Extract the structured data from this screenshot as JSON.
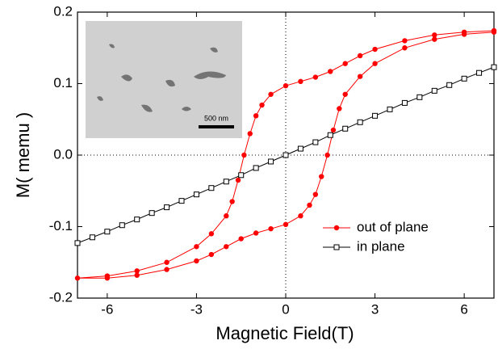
{
  "chart_data": {
    "type": "line",
    "xlabel": "Magnetic Field(T)",
    "ylabel": "M( memu )",
    "xlim": [
      -7,
      7
    ],
    "ylim": [
      -0.2,
      0.2
    ],
    "xticks": [
      -6,
      -3,
      0,
      3,
      6
    ],
    "yticks": [
      0.2,
      0.1,
      {
        "value": 0,
        "label": "0.0"
      },
      -0.1,
      -0.2
    ],
    "legend": "lower right",
    "inset": {
      "scale_label": "500 nm"
    },
    "series": [
      {
        "name": "out of plane",
        "color": "#ff0000",
        "marker": "filled-circle",
        "x": [
          7,
          6,
          5,
          4,
          3,
          2.5,
          2,
          1.5,
          1,
          0.5,
          0,
          -0.5,
          -0.8,
          -1,
          -1.2,
          -1.4,
          -1.6,
          -1.8,
          -2,
          -2.5,
          -3,
          -4,
          -5,
          -6,
          -7,
          -6,
          -5,
          -4,
          -3,
          -2.5,
          -2,
          -1.5,
          -1,
          -0.5,
          0,
          0.5,
          0.8,
          1,
          1.2,
          1.4,
          1.6,
          1.8,
          2,
          2.5,
          3,
          4,
          5,
          6,
          7
        ],
        "values": [
          0.174,
          0.172,
          0.168,
          0.16,
          0.148,
          0.139,
          0.128,
          0.117,
          0.109,
          0.103,
          0.097,
          0.085,
          0.07,
          0.055,
          0.03,
          0,
          -0.035,
          -0.065,
          -0.085,
          -0.11,
          -0.128,
          -0.15,
          -0.162,
          -0.169,
          -0.172,
          -0.172,
          -0.168,
          -0.16,
          -0.148,
          -0.139,
          -0.128,
          -0.117,
          -0.109,
          -0.103,
          -0.097,
          -0.085,
          -0.07,
          -0.055,
          -0.03,
          0,
          0.035,
          0.065,
          0.085,
          0.11,
          0.128,
          0.15,
          0.162,
          0.169,
          0.172
        ]
      },
      {
        "name": "in plane",
        "color": "#000000",
        "marker": "open-square",
        "x": [
          -7,
          -6.5,
          -6,
          -5.5,
          -5,
          -4.5,
          -4,
          -3.5,
          -3,
          -2.5,
          -2,
          -1.5,
          -1,
          -0.5,
          0,
          0.5,
          1,
          1.5,
          2,
          2.5,
          3,
          3.5,
          4,
          4.5,
          5,
          5.5,
          6,
          6.5,
          7
        ],
        "values": [
          -0.123,
          -0.115,
          -0.107,
          -0.098,
          -0.09,
          -0.081,
          -0.073,
          -0.064,
          -0.055,
          -0.046,
          -0.037,
          -0.028,
          -0.018,
          -0.009,
          0,
          0.009,
          0.018,
          0.028,
          0.037,
          0.046,
          0.055,
          0.064,
          0.073,
          0.081,
          0.09,
          0.098,
          0.107,
          0.115,
          0.123
        ]
      }
    ]
  }
}
